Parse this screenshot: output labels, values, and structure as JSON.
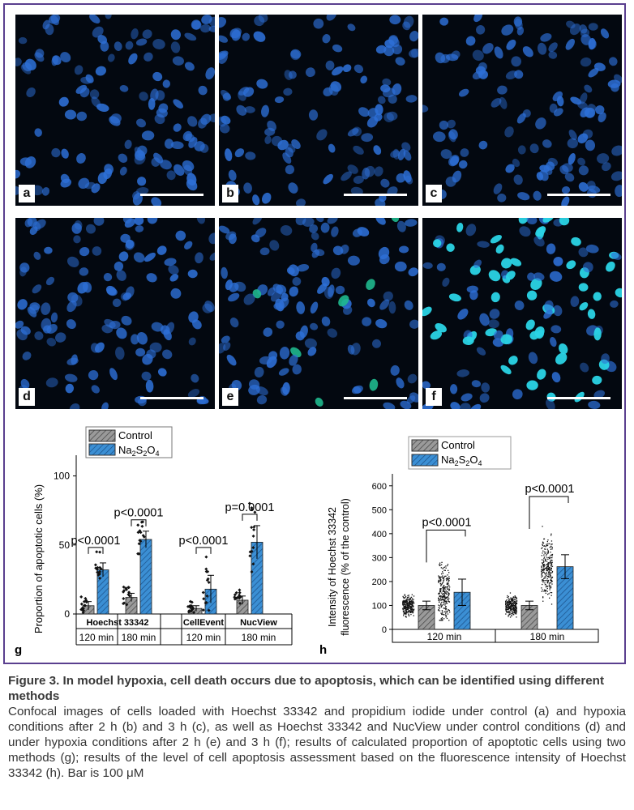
{
  "panels": [
    {
      "label": "a",
      "variant": "blue"
    },
    {
      "label": "b",
      "variant": "blue"
    },
    {
      "label": "c",
      "variant": "blue"
    },
    {
      "label": "d",
      "variant": "blue"
    },
    {
      "label": "e",
      "variant": "mixed"
    },
    {
      "label": "f",
      "variant": "cyan"
    }
  ],
  "colors": {
    "control": "#9a9a9a",
    "treatment": "#3b8fd4",
    "nucleus_blue": "#2d6fd6",
    "nucleus_cyan": "#2ad4e6",
    "frame": "#5a3f8f"
  },
  "chart_g": {
    "label": "g",
    "legend": {
      "control": "Control",
      "treatment": "Na2S2O4"
    },
    "ylabel": "Proportion of apoptotic cells (%)",
    "yticks": [
      "0",
      "50",
      "100"
    ]
  },
  "chart_h": {
    "label": "h",
    "legend": {
      "control": "Control",
      "treatment": "Na2S2O4"
    },
    "ylabel_line1": "Intensity of Hoechst 33342",
    "ylabel_line2": "fluorescence (% of the control)",
    "yticks": [
      "0",
      "100",
      "200",
      "300",
      "400",
      "500",
      "600"
    ]
  },
  "chart_data": [
    {
      "type": "bar",
      "title": "",
      "ylabel": "Proportion of apoptotic cells (%)",
      "ylim": [
        0,
        115
      ],
      "methods": [
        "Hoechst 33342",
        "CellEvent",
        "NucView"
      ],
      "time_points": [
        "120 min",
        "180 min",
        "120 min",
        "180 min"
      ],
      "series": [
        {
          "name": "Control",
          "values": [
            6,
            12,
            4,
            10
          ],
          "errors": [
            3,
            3,
            2,
            3
          ]
        },
        {
          "name": "Na2S2O4",
          "values": [
            32,
            54,
            18,
            52
          ],
          "errors": [
            5,
            6,
            10,
            12
          ]
        }
      ],
      "annotations": [
        "p<0.0001",
        "p<0.0001",
        "p<0.0001",
        "p=0.0001"
      ],
      "grid": false
    },
    {
      "type": "bar",
      "title": "",
      "ylabel": "Intensity of Hoechst 33342 fluorescence (% of the control)",
      "ylim": [
        0,
        650
      ],
      "categories": [
        "120 min",
        "180 min"
      ],
      "series": [
        {
          "name": "Control",
          "values": [
            100,
            100
          ],
          "errors": [
            18,
            18
          ]
        },
        {
          "name": "Na2S2O4",
          "values": [
            155,
            262
          ],
          "errors": [
            55,
            50
          ]
        }
      ],
      "annotations": [
        "p<0.0001",
        "p<0.0001"
      ],
      "grid": false
    }
  ],
  "caption": {
    "title": "Figure 3. In model hypoxia, cell death occurs due to apoptosis, which can be identified using different methods",
    "body": "Confocal images of cells loaded with Hoechst 33342 and propidium iodide under control (a) and hypoxia conditions after 2 h (b) and 3 h (c), as well as Hoechst 33342 and NucView under control conditions (d) and under hypoxia conditions after 2 h (e) and 3 h (f); results of calculated proportion of apoptotic cells using two methods (g); results of the level of cell apoptosis assessment based on the fluorescence intensity of Hoechst 33342 (h). Bar is 100 μM"
  }
}
